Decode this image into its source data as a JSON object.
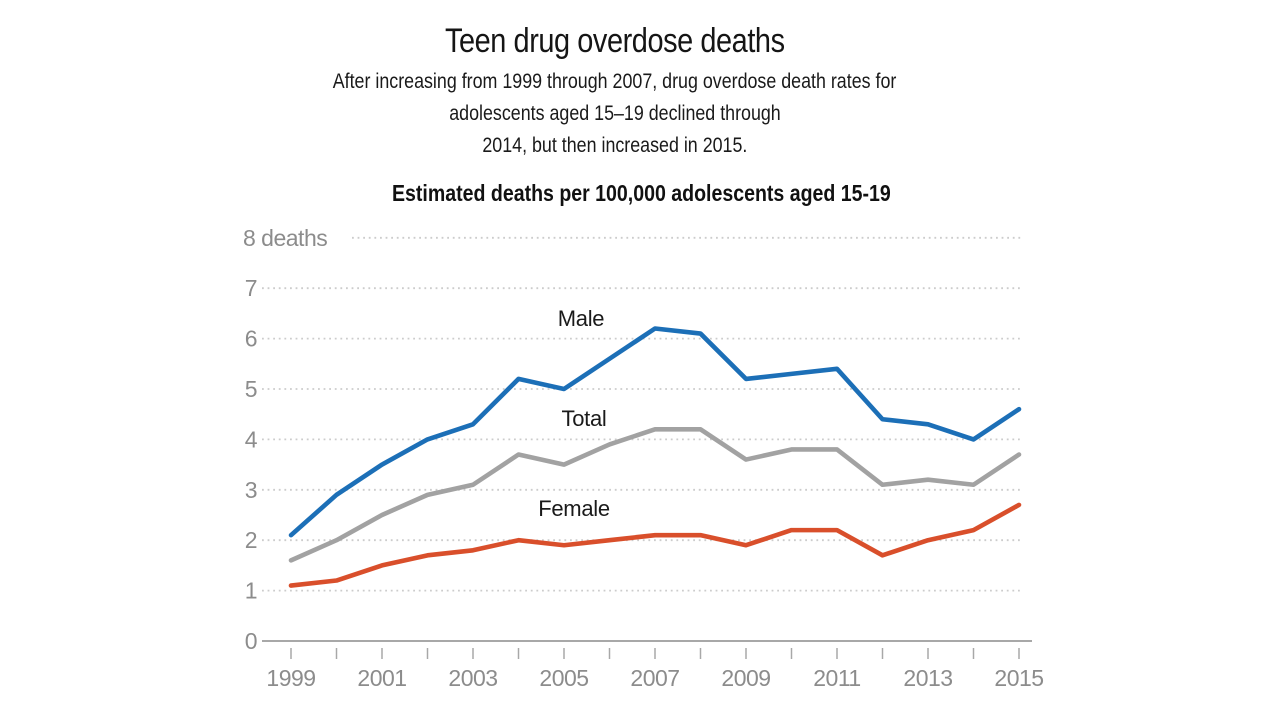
{
  "page": {
    "background": "#ffffff"
  },
  "header": {
    "title": "Teen drug overdose deaths",
    "subtitle_lines": [
      "After increasing from 1999 through 2007, drug overdose death rates for",
      "adolescents aged 15–19 declined through",
      "2014, but then increased in 2015."
    ],
    "axis_heading": "Estimated deaths per 100,000 adolescents aged 15-19"
  },
  "chart_data": {
    "type": "line",
    "title": "Teen drug overdose deaths",
    "ylabel_unit": "deaths",
    "x": [
      1999,
      2000,
      2001,
      2002,
      2003,
      2004,
      2005,
      2006,
      2007,
      2008,
      2009,
      2010,
      2011,
      2012,
      2013,
      2014,
      2015
    ],
    "series": [
      {
        "name": "Male",
        "color": "#1c6fb7",
        "values": [
          2.1,
          2.9,
          3.5,
          4.0,
          4.3,
          5.2,
          5.0,
          5.6,
          6.2,
          6.1,
          5.2,
          5.3,
          5.4,
          4.4,
          4.3,
          4.0,
          4.6
        ]
      },
      {
        "name": "Total",
        "color": "#a2a2a2",
        "values": [
          1.6,
          2.0,
          2.5,
          2.9,
          3.1,
          3.7,
          3.5,
          3.9,
          4.2,
          4.2,
          3.6,
          3.8,
          3.8,
          3.1,
          3.2,
          3.1,
          3.7
        ]
      },
      {
        "name": "Female",
        "color": "#d94f2b",
        "values": [
          1.1,
          1.2,
          1.5,
          1.7,
          1.8,
          2.0,
          1.9,
          2.0,
          2.1,
          2.1,
          1.9,
          2.2,
          2.2,
          1.7,
          2.0,
          2.2,
          2.7
        ]
      }
    ],
    "ylim": [
      0,
      8
    ],
    "y_tick_labels": [
      "0",
      "1",
      "2",
      "3",
      "4",
      "5",
      "6",
      "7",
      "8 deaths"
    ],
    "x_tick_labels": [
      "1999",
      "2001",
      "2003",
      "2005",
      "2007",
      "2009",
      "2011",
      "2013",
      "2015"
    ],
    "grid": "horizontal dotted gridlines at each integer, solid baseline at 0",
    "legend": "direct labels above each line",
    "colors": {
      "grid": "#cccccc",
      "axis": "#a8a8a8",
      "tick_label": "#8c8c8c",
      "text": "#1a1a1a"
    }
  }
}
